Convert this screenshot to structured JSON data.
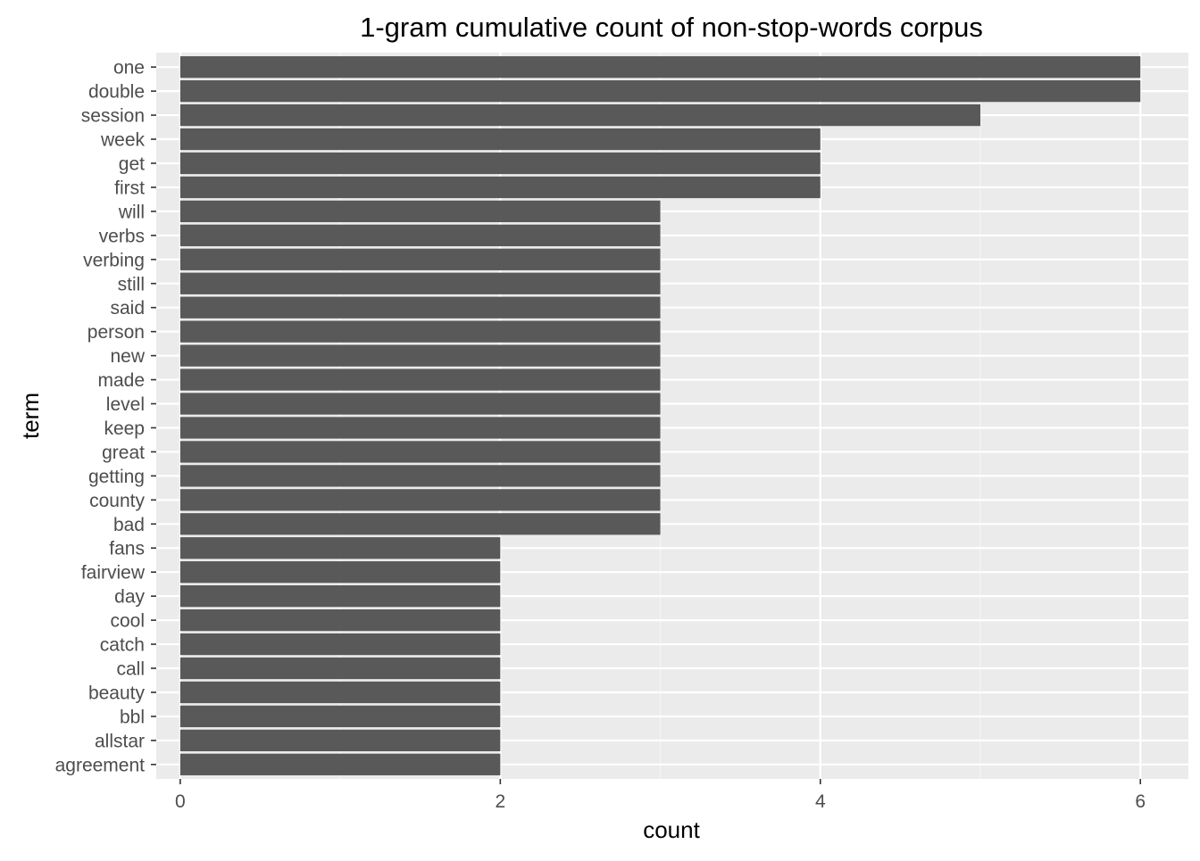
{
  "chart_data": {
    "type": "bar",
    "orientation": "horizontal",
    "title": "1-gram cumulative count of non-stop-words corpus",
    "xlabel": "count",
    "ylabel": "term",
    "xlim": [
      -0.15,
      6.3
    ],
    "x_ticks": [
      0,
      2,
      4,
      6
    ],
    "x_tick_labels": [
      "0",
      "2",
      "4",
      "6"
    ],
    "grid": true,
    "legend": "none",
    "categories": [
      "one",
      "double",
      "session",
      "week",
      "get",
      "first",
      "will",
      "verbs",
      "verbing",
      "still",
      "said",
      "person",
      "new",
      "made",
      "level",
      "keep",
      "great",
      "getting",
      "county",
      "bad",
      "fans",
      "fairview",
      "day",
      "cool",
      "catch",
      "call",
      "beauty",
      "bbl",
      "allstar",
      "agreement"
    ],
    "values": [
      6,
      6,
      5,
      4,
      4,
      4,
      3,
      3,
      3,
      3,
      3,
      3,
      3,
      3,
      3,
      3,
      3,
      3,
      3,
      3,
      2,
      2,
      2,
      2,
      2,
      2,
      2,
      2,
      2,
      2
    ],
    "colors": {
      "bar": "#595959",
      "panel_background": "#ebebeb",
      "grid_major": "#ffffff",
      "grid_minor": "#f5f5f5",
      "tick": "#333333"
    }
  }
}
